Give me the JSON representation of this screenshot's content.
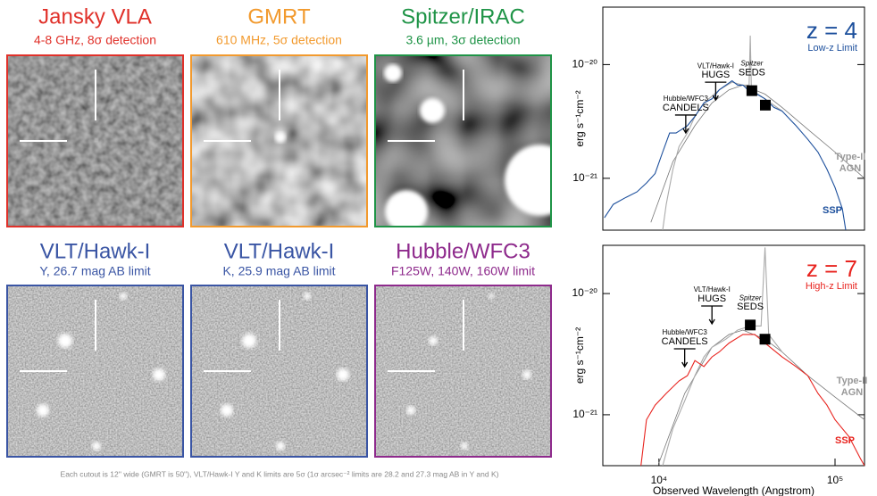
{
  "cutouts": [
    {
      "title": "Jansky VLA",
      "subtitle": "4-8 GHz, 8σ detection",
      "color": "#e0312a"
    },
    {
      "title": "GMRT",
      "subtitle": "610 MHz, 5σ detection",
      "color": "#f29a2e"
    },
    {
      "title": "Spitzer/IRAC",
      "subtitle": "3.6 µm, 3σ detection",
      "color": "#1f9447"
    },
    {
      "title": "VLT/Hawk-I",
      "subtitle": "Y, 26.7 mag AB limit",
      "color": "#3a55a4"
    },
    {
      "title": "VLT/Hawk-I",
      "subtitle": "K, 25.9 mag AB limit",
      "color": "#3a55a4"
    },
    {
      "title": "Hubble/WFC3",
      "subtitle": "F125W, 140W, 160W limit",
      "color": "#8e2a8c"
    }
  ],
  "caption": "Each cutout is 12'' wide (GMRT is 50''), VLT/Hawk-I Y and K limits are 5σ (1σ arcsec⁻² limits are 28.2 and 27.3 mag AB in Y and K)",
  "chart_data": [
    {
      "type": "line",
      "title": "z = 4",
      "subtitle": "Low-z Limit",
      "color": "#1c4f9c",
      "ylabel": "erg s⁻¹cm⁻²",
      "xscale": "log",
      "yscale": "log",
      "xlim": [
        4800,
        147000
      ],
      "ylim": [
        3.2e-20,
        3.5e-22
      ],
      "yticks": [
        {
          "value": 1e-20,
          "label": "10⁻²⁰"
        },
        {
          "value": 1e-21,
          "label": "10⁻²¹"
        }
      ],
      "series": [
        {
          "name": "Type-II AGN",
          "style": "model",
          "color": "#777777",
          "x": [
            9000,
            12000,
            16000,
            20000,
            25000,
            30000,
            40000,
            50000,
            70000,
            100000,
            147000
          ],
          "values": [
            4.1e-22,
            1.4e-21,
            2.9e-21,
            4.6e-21,
            6e-21,
            6.6e-21,
            5.5e-21,
            4.2e-21,
            2.7e-21,
            1.7e-21,
            1e-21
          ]
        },
        {
          "style": "line",
          "color": "#aaaaaa",
          "x": [
            10500,
            11000,
            12000,
            13000,
            14500,
            16000,
            18000,
            22000,
            26000,
            30000,
            32500,
            33000,
            33500,
            40000,
            50000
          ],
          "values": [
            3.5e-22,
            5.9e-22,
            1.2e-21,
            1.9e-21,
            2.5e-21,
            3.5e-21,
            4.6e-21,
            6e-21,
            7e-21,
            6.6e-21,
            6.6e-21,
            1.8e-20,
            6e-21,
            5e-21,
            3.9e-21
          ]
        },
        {
          "name": "SSP",
          "style": "line",
          "color": "#1c4f9c",
          "x": [
            4900,
            5500,
            6500,
            7500,
            8500,
            9500,
            10500,
            11500,
            12500,
            13500,
            14500,
            16000,
            18000,
            20000,
            22000,
            24000,
            26000,
            28000,
            30000,
            32000,
            36000,
            40000,
            45000,
            50000,
            60000,
            70000,
            80000,
            90000,
            100000,
            110000,
            115000
          ],
          "values": [
            4.5e-22,
            5.9e-22,
            6.8e-22,
            7.6e-22,
            9.1e-22,
            1.1e-21,
            1.7e-21,
            2.5e-21,
            2.5e-21,
            2.7e-21,
            2.9e-21,
            3.5e-21,
            4.6e-21,
            5e-21,
            6e-21,
            6.6e-21,
            7.2e-21,
            6.6e-21,
            6.6e-21,
            6e-21,
            5.5e-21,
            5e-21,
            4.2e-21,
            3.9e-21,
            2.9e-21,
            2.2e-21,
            1.7e-21,
            1.2e-21,
            8.3e-22,
            5.4e-22,
            3.5e-22
          ]
        },
        {
          "name": "CANDELS",
          "instrument": "Hubble/WFC3",
          "style": "upper-limit",
          "color": "#000000",
          "x": [
            14200
          ],
          "values": [
            3.6e-21
          ]
        },
        {
          "name": "HUGS",
          "instrument": "VLT/Hawk-I",
          "style": "upper-limit",
          "color": "#000000",
          "x": [
            21000
          ],
          "values": [
            7e-21
          ]
        },
        {
          "name": "SEDS",
          "instrument": "Spitzer",
          "style": "points",
          "color": "#000000",
          "x": [
            33700,
            40200
          ],
          "values": [
            5.9e-21,
            4.4e-21
          ]
        }
      ]
    },
    {
      "type": "line",
      "title": "z = 7",
      "subtitle": "High-z Limit",
      "color": "#e8231e",
      "ylabel": "erg s⁻¹cm⁻²",
      "xlabel": "Observed Wavelength (Angstrom)",
      "xscale": "log",
      "yscale": "log",
      "xlim": [
        4800,
        147000
      ],
      "ylim": [
        2.5e-20,
        3.8e-22
      ],
      "xticks": [
        {
          "value": 10000,
          "label": "10⁴"
        },
        {
          "value": 100000,
          "label": "10⁵"
        }
      ],
      "yticks": [
        {
          "value": 1e-20,
          "label": "10⁻²⁰"
        },
        {
          "value": 1e-21,
          "label": "10⁻²¹"
        }
      ],
      "series": [
        {
          "name": "Type-II AGN",
          "style": "model",
          "color": "#777777",
          "x": [
            10000,
            14000,
            20000,
            25000,
            30000,
            40000,
            50000,
            70000,
            100000,
            147000
          ],
          "values": [
            4e-22,
            1.5e-21,
            3.6e-21,
            4.6e-21,
            5e-21,
            4.2e-21,
            3.3e-21,
            2.1e-21,
            1.4e-21,
            9.1e-22
          ]
        },
        {
          "style": "line",
          "color": "#aaaaaa",
          "x": [
            10500,
            12000,
            14000,
            16000,
            18000,
            20000,
            24000,
            28000,
            33000,
            38000,
            40000,
            42000,
            50000
          ],
          "values": [
            3.8e-22,
            7.7e-22,
            1.3e-21,
            2.1e-21,
            3e-21,
            3.6e-21,
            4.2e-21,
            5e-21,
            5.4e-21,
            5.4e-21,
            2.4e-20,
            4.6e-21,
            3.3e-21
          ]
        },
        {
          "name": "SSP",
          "style": "line",
          "color": "#e8231e",
          "x": [
            7900,
            8500,
            9500,
            11000,
            13000,
            14500,
            16000,
            18000,
            20000,
            22000,
            25000,
            30000,
            35000,
            40000,
            50000,
            60000,
            70000,
            80000,
            90000,
            100000,
            120000,
            140000,
            147000
          ],
          "values": [
            3.8e-22,
            9.1e-22,
            1.2e-21,
            1.5e-21,
            1.9e-21,
            2.1e-21,
            2.8e-21,
            2.5e-21,
            3e-21,
            3.3e-21,
            3.9e-21,
            4.6e-21,
            4.6e-21,
            3.9e-21,
            3e-21,
            2.5e-21,
            2.1e-21,
            1.5e-21,
            1.2e-21,
            9.1e-22,
            6.6e-22,
            4.3e-22,
            3.8e-22
          ]
        },
        {
          "name": "CANDELS",
          "instrument": "Hubble/WFC3",
          "style": "upper-limit",
          "color": "#000000",
          "x": [
            14000
          ],
          "values": [
            3.5e-21
          ]
        },
        {
          "name": "HUGS",
          "instrument": "VLT/Hawk-I",
          "style": "upper-limit",
          "color": "#000000",
          "x": [
            20000
          ],
          "values": [
            7.9e-21
          ]
        },
        {
          "name": "SEDS",
          "instrument": "Spitzer",
          "style": "points",
          "color": "#000000",
          "x": [
            33000,
            40000
          ],
          "values": [
            5.5e-21,
            4.2e-21
          ]
        }
      ]
    }
  ]
}
